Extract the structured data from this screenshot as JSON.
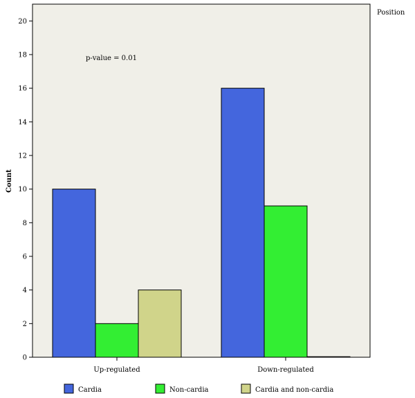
{
  "chart_data": {
    "type": "bar",
    "categories": [
      "Up-regulated",
      "Down-regulated"
    ],
    "series": [
      {
        "name": "Cardia",
        "values": [
          10,
          16
        ],
        "color": "#4466dd"
      },
      {
        "name": "Non-cardia",
        "values": [
          2,
          9
        ],
        "color": "#33ee33"
      },
      {
        "name": "Cardia and non-cardia",
        "values": [
          4,
          0
        ],
        "color": "#d0d48a"
      }
    ],
    "ylabel": "Count",
    "xlabel": "",
    "ylim": [
      0,
      21
    ],
    "yticks": [
      0,
      2,
      4,
      6,
      8,
      10,
      12,
      14,
      16,
      18,
      20
    ],
    "annotation": "p-value = 0.01",
    "legend_title": "Position",
    "legend_position": "bottom",
    "plot_background": "#f0efe8",
    "grid": false
  }
}
